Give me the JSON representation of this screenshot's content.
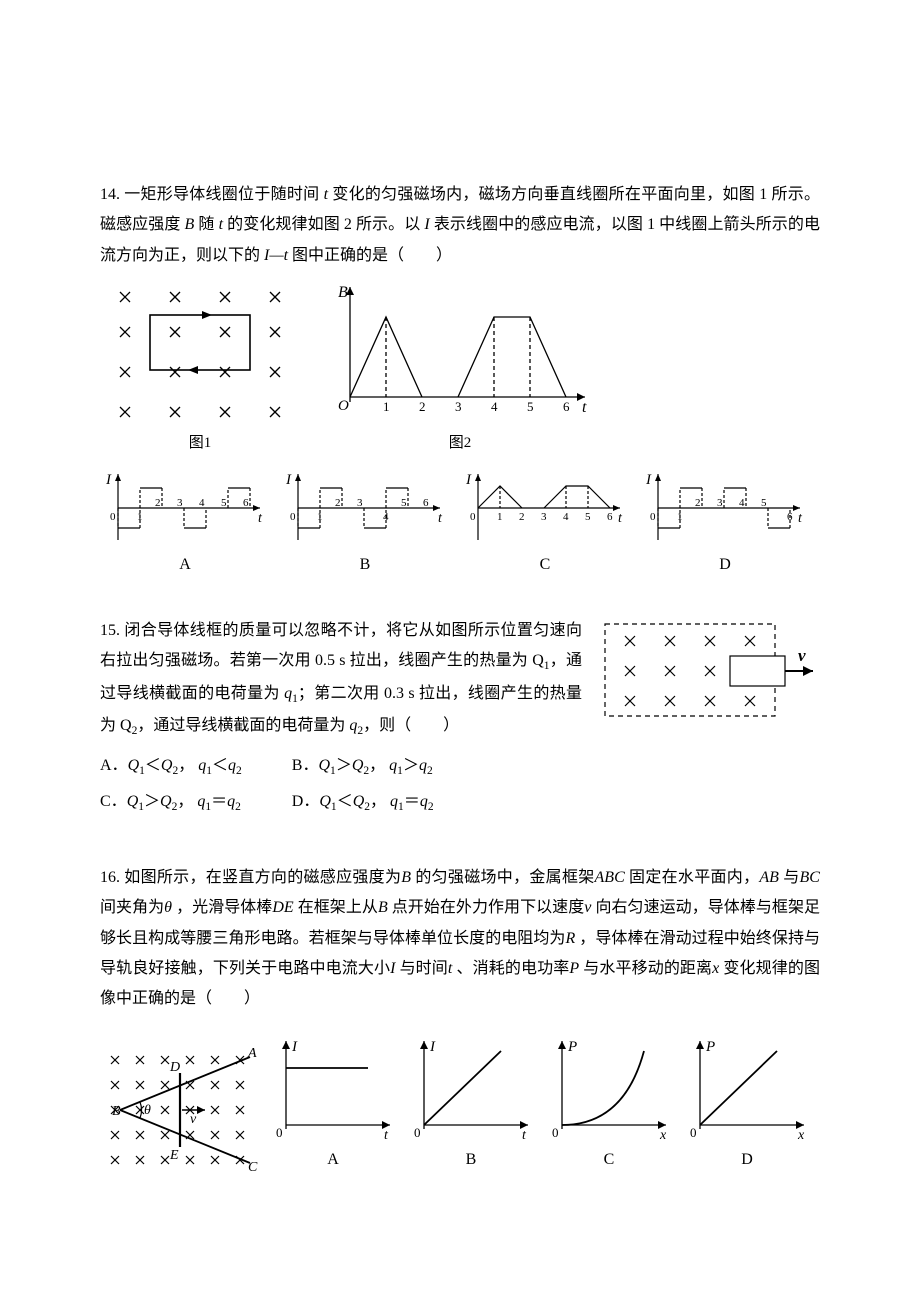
{
  "q14": {
    "num": "14.",
    "text1": "一矩形导体线圈位于随时间",
    "tvar": "t",
    "text2": "变化的匀强磁场内，磁场方向垂直线圈所在平面向里，如图 1 所示。磁感应强度",
    "Bvar": "B",
    "text3": "随",
    "text4": "的变化规律如图 2 所示。以",
    "Ivar": "I",
    "text5": "表示线圈中的感应电流，以图 1 中线圈上箭头所示的电流方向为正，则以下的",
    "text6": "图中正确的是（　　）",
    "fig1_cap": "图1",
    "fig2_cap": "图2",
    "optA": "A",
    "optB": "B",
    "optC": "C",
    "optD": "D",
    "axis_B": "B",
    "axis_I": "I",
    "axis_t": "t",
    "axis_O": "O",
    "ticks": [
      "0",
      "1",
      "2",
      "3",
      "4",
      "5",
      "6"
    ],
    "colors": {
      "stroke": "#000000",
      "bg": "#ffffff"
    },
    "stroke_w": 1.3,
    "stroke_thin": 1.0
  },
  "q15": {
    "num": "15.",
    "text1": "闭合导体线框的质量可以忽略不计，将它从如图所示位置匀速向右拉出匀强磁场。若第一次用 0.5 s 拉出，线圈产生的热量为 Q",
    "text2": "，通过导线横截面的电荷量为",
    "text3": "；第二次用 0.3 s 拉出，线圈产生的热量为 Q",
    "text4": "，通过导线横截面的电荷量为",
    "text5": "，则（　　）",
    "A": "A．",
    "B": "B．",
    "C": "C．",
    "D": "D．",
    "Q1": "Q",
    "Q2": "Q",
    "q1": "q",
    "q2": "q",
    "lt": "＜",
    "gt": "＞",
    "eq": "＝",
    "vlabel": "v",
    "colors": {
      "stroke": "#000000"
    }
  },
  "q16": {
    "num": "16.",
    "text1": "如图所示，在竖直方向的磁感应强度为",
    "B": "B",
    "text2": "的匀强磁场中，金属框架",
    "ABC": "ABC",
    "text3": "固定在水平面内，",
    "AB": "AB",
    "text4": "与",
    "BC": "BC",
    "text5": "间夹角为",
    "theta": "θ",
    "text6": "，光滑导体棒",
    "DE": "DE",
    "text7": "在框架上从",
    "Bpt": "B",
    "text8": "点开始在外力作用下以速度",
    "v": "v",
    "text9": "向右匀速运动，导体棒与框架足够长且构成等腰三角形电路。若框架与导体棒单位长度的电阻均为",
    "R": "R",
    "text10": "，导体棒在滑动过程中始终保持与导轨良好接触，下列关于电路中电流大小",
    "I": "I",
    "text11": "与时间",
    "t": "t",
    "text12": "、消耗的电功率",
    "P": "P",
    "text13": "与水平移动的距离",
    "x": "x",
    "text14": "变化规律的图像中正确的是（　　）",
    "labels": {
      "A": "A",
      "B": "B",
      "C": "C",
      "D": "D",
      "E": "E",
      "theta": "θ",
      "v": "v"
    },
    "axis_I": "I",
    "axis_P": "P",
    "axis_t": "t",
    "axis_x": "x",
    "optA": "A",
    "optB": "B",
    "optC": "C",
    "optD": "D",
    "colors": {
      "stroke": "#000000"
    }
  }
}
